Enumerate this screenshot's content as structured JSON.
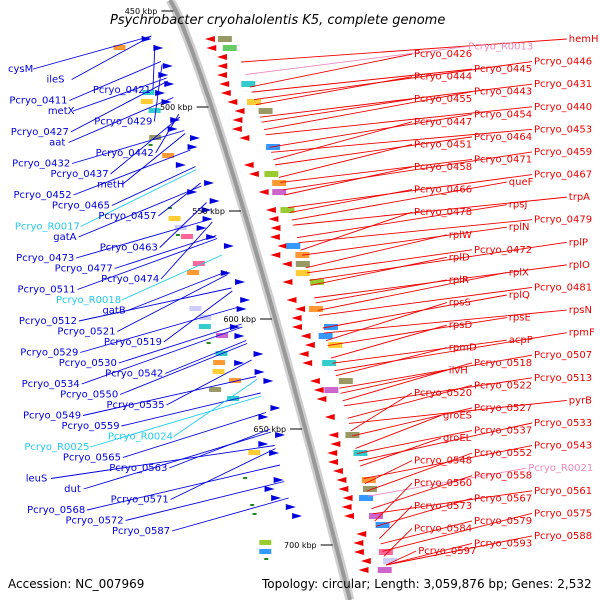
{
  "title": "Psychrobacter cryohalolentis K5, complete genome",
  "footer": {
    "accession": "Accession: NC_007969",
    "stats": "Topology: circular; Length: 3,059,876 bp; Genes: 2,532"
  },
  "colors": {
    "forward_strand": "#0000dd",
    "reverse_strand": "#ee0000",
    "rna": "#22ccee",
    "pseudo": "#ee88bb",
    "backbone": "#999999"
  },
  "ticks": [
    "450 kbp",
    "500 kbp",
    "550 kbp",
    "600 kbp",
    "650 kbp",
    "700 kbp"
  ],
  "left_labels": [
    {
      "text": "cysM",
      "kind": "gene"
    },
    {
      "text": "ileS",
      "kind": "gene"
    },
    {
      "text": "Pcryo_0421",
      "kind": "gene"
    },
    {
      "text": "Pcryo_0411",
      "kind": "gene"
    },
    {
      "text": "metX",
      "kind": "gene"
    },
    {
      "text": "Pcryo_0429",
      "kind": "gene"
    },
    {
      "text": "Pcryo_0427",
      "kind": "gene"
    },
    {
      "text": "aat",
      "kind": "gene"
    },
    {
      "text": "Pcryo_0442",
      "kind": "gene"
    },
    {
      "text": "Pcryo_0432",
      "kind": "gene"
    },
    {
      "text": "Pcryo_0437",
      "kind": "gene"
    },
    {
      "text": "metH",
      "kind": "gene"
    },
    {
      "text": "Pcryo_0452",
      "kind": "gene"
    },
    {
      "text": "Pcryo_0465",
      "kind": "gene"
    },
    {
      "text": "Pcryo_0457",
      "kind": "gene"
    },
    {
      "text": "Pcryo_R0017",
      "kind": "rna"
    },
    {
      "text": "gatA",
      "kind": "gene"
    },
    {
      "text": "Pcryo_0463",
      "kind": "gene"
    },
    {
      "text": "Pcryo_0473",
      "kind": "gene"
    },
    {
      "text": "Pcryo_0477",
      "kind": "gene"
    },
    {
      "text": "Pcryo_0474",
      "kind": "gene"
    },
    {
      "text": "Pcryo_0511",
      "kind": "gene"
    },
    {
      "text": "Pcryo_R0018",
      "kind": "rna"
    },
    {
      "text": "gatB",
      "kind": "gene"
    },
    {
      "text": "Pcryo_0512",
      "kind": "gene"
    },
    {
      "text": "Pcryo_0521",
      "kind": "gene"
    },
    {
      "text": "Pcryo_0519",
      "kind": "gene"
    },
    {
      "text": "Pcryo_0529",
      "kind": "gene"
    },
    {
      "text": "Pcryo_0530",
      "kind": "gene"
    },
    {
      "text": "Pcryo_0542",
      "kind": "gene"
    },
    {
      "text": "Pcryo_0534",
      "kind": "gene"
    },
    {
      "text": "Pcryo_0550",
      "kind": "gene"
    },
    {
      "text": "Pcryo_0535",
      "kind": "gene"
    },
    {
      "text": "Pcryo_0549",
      "kind": "gene"
    },
    {
      "text": "Pcryo_0559",
      "kind": "gene"
    },
    {
      "text": "Pcryo_R0024",
      "kind": "rna"
    },
    {
      "text": "Pcryo_R0025",
      "kind": "rna"
    },
    {
      "text": "Pcryo_0565",
      "kind": "gene"
    },
    {
      "text": "Pcryo_0563",
      "kind": "gene"
    },
    {
      "text": "leuS",
      "kind": "gene"
    },
    {
      "text": "dut",
      "kind": "gene"
    },
    {
      "text": "Pcryo_0571",
      "kind": "gene"
    },
    {
      "text": "Pcryo_0568",
      "kind": "gene"
    },
    {
      "text": "Pcryo_0572",
      "kind": "gene"
    },
    {
      "text": "Pcryo_0587",
      "kind": "gene"
    }
  ],
  "right_labels": [
    {
      "text": "hemH",
      "kind": "gene"
    },
    {
      "text": "Pcryo_R0013",
      "kind": "pseudo"
    },
    {
      "text": "Pcryo_0426",
      "kind": "gene"
    },
    {
      "text": "Pcryo_0446",
      "kind": "gene"
    },
    {
      "text": "Pcryo_0445",
      "kind": "gene"
    },
    {
      "text": "Pcryo_0444",
      "kind": "gene"
    },
    {
      "text": "Pcryo_0431",
      "kind": "gene"
    },
    {
      "text": "Pcryo_0443",
      "kind": "gene"
    },
    {
      "text": "Pcryo_0455",
      "kind": "gene"
    },
    {
      "text": "Pcryo_0440",
      "kind": "gene"
    },
    {
      "text": "Pcryo_0454",
      "kind": "gene"
    },
    {
      "text": "Pcryo_0447",
      "kind": "gene"
    },
    {
      "text": "Pcryo_0453",
      "kind": "gene"
    },
    {
      "text": "Pcryo_0464",
      "kind": "gene"
    },
    {
      "text": "Pcryo_0451",
      "kind": "gene"
    },
    {
      "text": "Pcryo_0459",
      "kind": "gene"
    },
    {
      "text": "Pcryo_0471",
      "kind": "gene"
    },
    {
      "text": "Pcryo_0458",
      "kind": "gene"
    },
    {
      "text": "Pcryo_0467",
      "kind": "gene"
    },
    {
      "text": "queF",
      "kind": "gene"
    },
    {
      "text": "Pcryo_0466",
      "kind": "gene"
    },
    {
      "text": "trpA",
      "kind": "gene"
    },
    {
      "text": "rpsJ",
      "kind": "gene"
    },
    {
      "text": "Pcryo_0478",
      "kind": "gene"
    },
    {
      "text": "Pcryo_0479",
      "kind": "gene"
    },
    {
      "text": "rplN",
      "kind": "gene"
    },
    {
      "text": "rplW",
      "kind": "gene"
    },
    {
      "text": "rplP",
      "kind": "gene"
    },
    {
      "text": "Pcryo_0472",
      "kind": "gene"
    },
    {
      "text": "rplD",
      "kind": "gene"
    },
    {
      "text": "rplO",
      "kind": "gene"
    },
    {
      "text": "rplX",
      "kind": "gene"
    },
    {
      "text": "rplR",
      "kind": "gene"
    },
    {
      "text": "Pcryo_0481",
      "kind": "gene"
    },
    {
      "text": "rplQ",
      "kind": "gene"
    },
    {
      "text": "rpsS",
      "kind": "gene"
    },
    {
      "text": "rpsN",
      "kind": "gene"
    },
    {
      "text": "rpsE",
      "kind": "gene"
    },
    {
      "text": "rpsD",
      "kind": "gene"
    },
    {
      "text": "rpmF",
      "kind": "gene"
    },
    {
      "text": "acpP",
      "kind": "gene"
    },
    {
      "text": "rpmD",
      "kind": "gene"
    },
    {
      "text": "Pcryo_0507",
      "kind": "gene"
    },
    {
      "text": "Pcryo_0518",
      "kind": "gene"
    },
    {
      "text": "ilvH",
      "kind": "gene"
    },
    {
      "text": "Pcryo_0513",
      "kind": "gene"
    },
    {
      "text": "Pcryo_0522",
      "kind": "gene"
    },
    {
      "text": "Pcryo_0520",
      "kind": "gene"
    },
    {
      "text": "pyrB",
      "kind": "gene"
    },
    {
      "text": "Pcryo_0527",
      "kind": "gene"
    },
    {
      "text": "groES",
      "kind": "gene"
    },
    {
      "text": "Pcryo_0533",
      "kind": "gene"
    },
    {
      "text": "Pcryo_0537",
      "kind": "gene"
    },
    {
      "text": "groEL",
      "kind": "gene"
    },
    {
      "text": "Pcryo_0543",
      "kind": "gene"
    },
    {
      "text": "Pcryo_0552",
      "kind": "gene"
    },
    {
      "text": "Pcryo_0548",
      "kind": "gene"
    },
    {
      "text": "Pcryo_R0021",
      "kind": "pseudo"
    },
    {
      "text": "Pcryo_0558",
      "kind": "gene"
    },
    {
      "text": "Pcryo_0560",
      "kind": "gene"
    },
    {
      "text": "Pcryo_0561",
      "kind": "gene"
    },
    {
      "text": "Pcryo_0567",
      "kind": "gene"
    },
    {
      "text": "Pcryo_0573",
      "kind": "gene"
    },
    {
      "text": "Pcryo_0575",
      "kind": "gene"
    },
    {
      "text": "Pcryo_0579",
      "kind": "gene"
    },
    {
      "text": "Pcryo_0584",
      "kind": "gene"
    },
    {
      "text": "Pcryo_0588",
      "kind": "gene"
    },
    {
      "text": "Pcryo_0593",
      "kind": "gene"
    },
    {
      "text": "Pcryo_0597",
      "kind": "gene"
    }
  ]
}
